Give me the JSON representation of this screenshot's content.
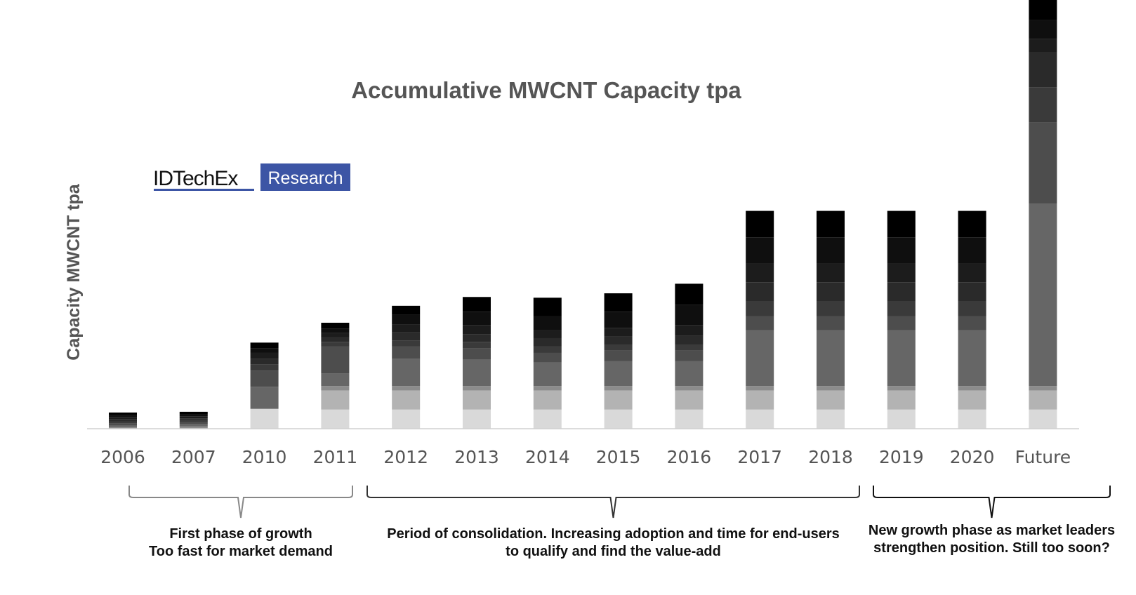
{
  "logo": {
    "brand": "IDTechEx",
    "tag": "Research",
    "accent": "#3c55a5"
  },
  "chart_data": {
    "type": "bar",
    "stacked": true,
    "title": "Accumulative MWCNT Capacity tpa",
    "xlabel": "",
    "ylabel": "Capacity MWCNT tpa",
    "y_ticks_shown": false,
    "grid": false,
    "legend": "none",
    "categories": [
      "2006",
      "2007",
      "2010",
      "2011",
      "2012",
      "2013",
      "2014",
      "2015",
      "2016",
      "2017",
      "2018",
      "2019",
      "2020",
      "Future"
    ],
    "segment_colors": [
      "#d9d9d9",
      "#b3b3b3",
      "#8c8c8c",
      "#666666",
      "#4d4d4d",
      "#3a3a3a",
      "#2a2a2a",
      "#1c1c1c",
      "#0f0f0f",
      "#000000"
    ],
    "stacks": [
      [
        0,
        0,
        2,
        2,
        3,
        3,
        3,
        3,
        3,
        3
      ],
      [
        0,
        0,
        3,
        3,
        3,
        3,
        2,
        3,
        3,
        3
      ],
      [
        27,
        0,
        0,
        30,
        22,
        8,
        8,
        8,
        6,
        8
      ],
      [
        26,
        26,
        6,
        17,
        37,
        6,
        6,
        6,
        6,
        8
      ],
      [
        26,
        26,
        6,
        37,
        17,
        8,
        11,
        11,
        13,
        12
      ],
      [
        26,
        26,
        6,
        36,
        15,
        9,
        10,
        13,
        18,
        20
      ],
      [
        26,
        26,
        6,
        32,
        13,
        9,
        11,
        11,
        19,
        25
      ],
      [
        26,
        26,
        6,
        34,
        14,
        8,
        11,
        12,
        22,
        25
      ],
      [
        26,
        26,
        6,
        34,
        14,
        8,
        12,
        15,
        27,
        29
      ],
      [
        26,
        26,
        6,
        76,
        19,
        20,
        26,
        26,
        35,
        36
      ],
      [
        26,
        26,
        6,
        76,
        19,
        20,
        26,
        26,
        35,
        36
      ],
      [
        26,
        26,
        6,
        76,
        19,
        20,
        26,
        26,
        35,
        36
      ],
      [
        26,
        26,
        6,
        76,
        19,
        20,
        26,
        26,
        35,
        36
      ],
      [
        26,
        26,
        6,
        248,
        110,
        48,
        48,
        18,
        25,
        50
      ]
    ],
    "ylim": [
      0,
      430
    ],
    "annotations": [
      {
        "from": "2006",
        "to": "2011",
        "lines": [
          "First phase of growth",
          "Too fast for market demand"
        ]
      },
      {
        "from": "2012",
        "to": "2018",
        "lines": [
          "Period of consolidation. Increasing adoption and time for end-users",
          "to qualify and find the value-add"
        ]
      },
      {
        "from": "2019",
        "to": "Future",
        "lines": [
          "New growth phase as market leaders",
          "strengthen position. Still too soon?"
        ]
      }
    ]
  }
}
